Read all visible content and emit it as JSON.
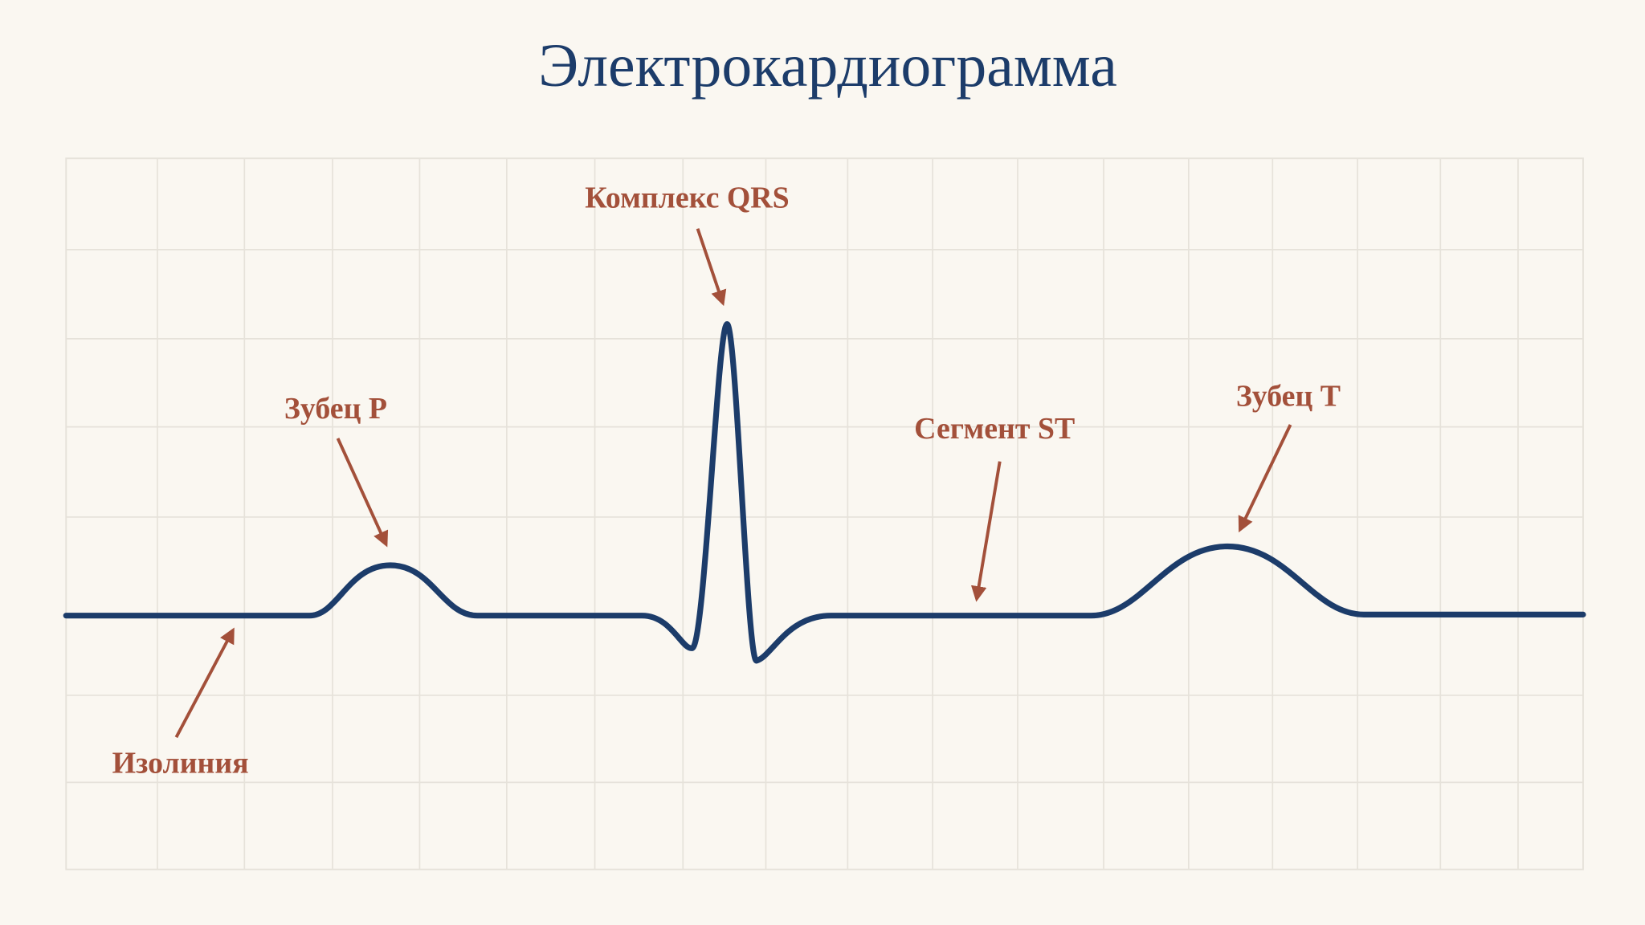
{
  "title": "Электрокардиограмма",
  "annotations": [
    {
      "label": "Комплекс QRS"
    },
    {
      "label": "Зубец P"
    },
    {
      "label": "Сегмент ST"
    },
    {
      "label": "Зубец T"
    },
    {
      "label": "Изолиния"
    }
  ]
}
